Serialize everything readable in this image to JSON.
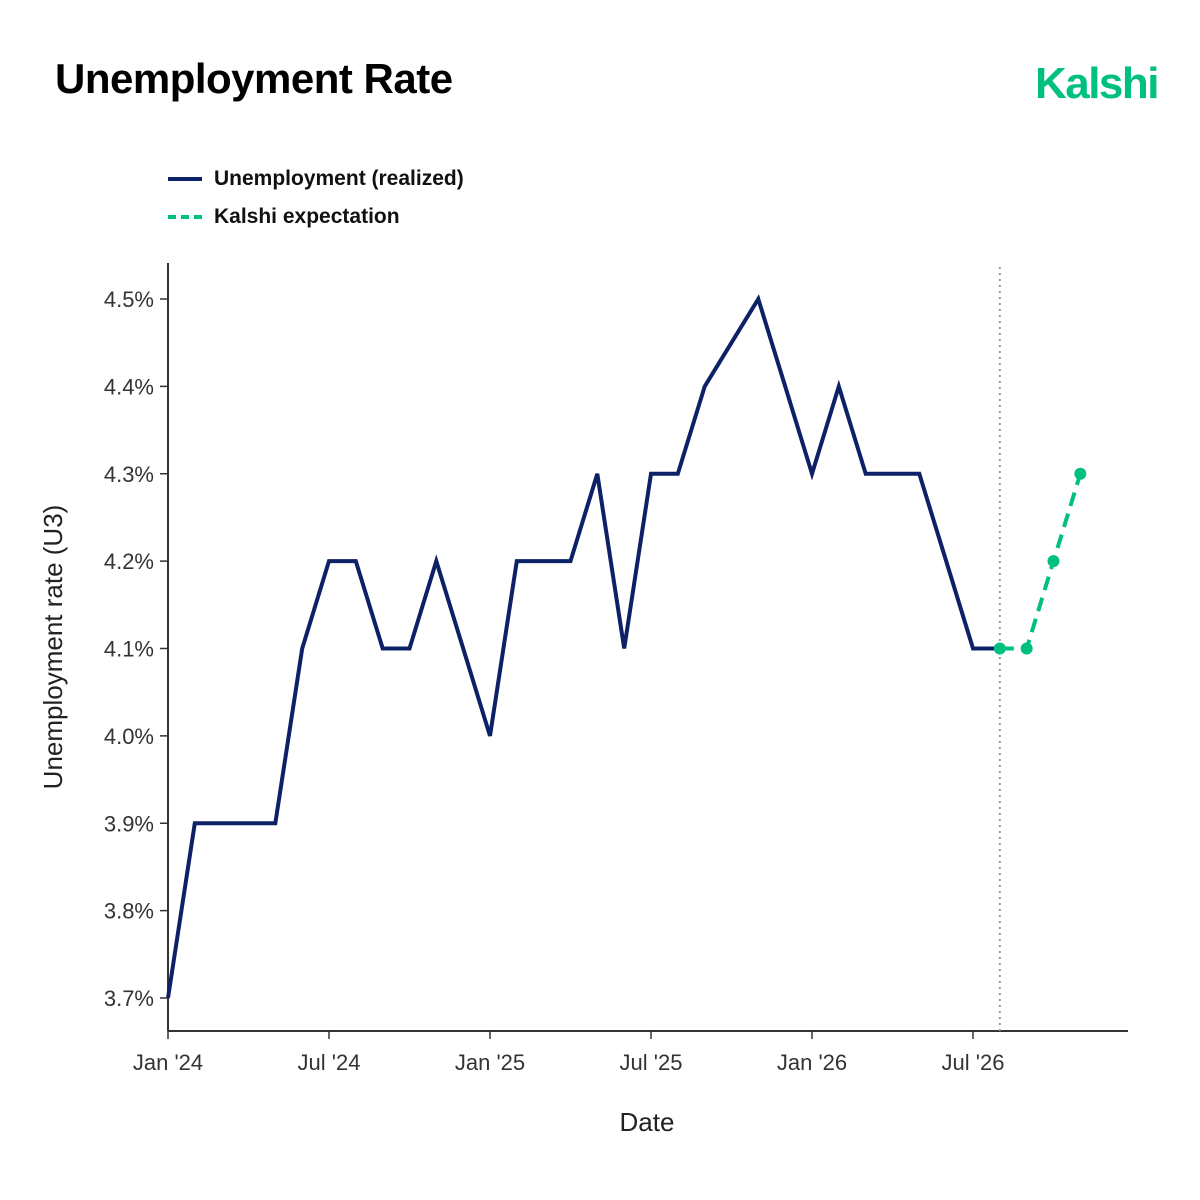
{
  "header": {
    "title": "Unemployment Rate",
    "brand": "Kalshi"
  },
  "colors": {
    "realized": "#0d2166",
    "expectation": "#00c07f",
    "axis": "#333333",
    "reference_line": "#999999"
  },
  "chart_data": {
    "type": "line",
    "xlabel": "Date",
    "ylabel": "Unemployment rate (U3)",
    "ylim": [
      3.7,
      4.5
    ],
    "xlim": [
      "2024-01",
      "2026-11"
    ],
    "grid": false,
    "legend_position": "top-left",
    "x_ticks": [
      {
        "date": "2024-01",
        "label": "Jan '24"
      },
      {
        "date": "2024-07",
        "label": "Jul '24"
      },
      {
        "date": "2025-01",
        "label": "Jan '25"
      },
      {
        "date": "2025-07",
        "label": "Jul '25"
      },
      {
        "date": "2026-01",
        "label": "Jan '26"
      },
      {
        "date": "2026-07",
        "label": "Jul '26"
      }
    ],
    "y_ticks": [
      {
        "value": 3.7,
        "label": "3.7%"
      },
      {
        "value": 3.8,
        "label": "3.8%"
      },
      {
        "value": 3.9,
        "label": "3.9%"
      },
      {
        "value": 4.0,
        "label": "4.0%"
      },
      {
        "value": 4.1,
        "label": "4.1%"
      },
      {
        "value": 4.2,
        "label": "4.2%"
      },
      {
        "value": 4.3,
        "label": "4.3%"
      },
      {
        "value": 4.4,
        "label": "4.4%"
      },
      {
        "value": 4.5,
        "label": "4.5%"
      }
    ],
    "reference_line_x": "2026-08",
    "series": [
      {
        "name": "Unemployment (realized)",
        "style": "solid",
        "x": [
          "2024-01",
          "2024-02",
          "2024-03",
          "2024-04",
          "2024-05",
          "2024-06",
          "2024-07",
          "2024-08",
          "2024-09",
          "2024-10",
          "2024-11",
          "2024-12",
          "2025-01",
          "2025-02",
          "2025-03",
          "2025-04",
          "2025-05",
          "2025-06",
          "2025-07",
          "2025-08",
          "2025-09",
          "2025-10",
          "2025-11",
          "2025-12",
          "2026-01",
          "2026-02",
          "2026-03",
          "2026-04",
          "2026-05",
          "2026-06",
          "2026-07",
          "2026-08"
        ],
        "y": [
          3.7,
          3.9,
          3.9,
          3.9,
          3.9,
          4.1,
          4.2,
          4.2,
          4.1,
          4.1,
          4.2,
          4.1,
          4.0,
          4.2,
          4.2,
          4.2,
          4.3,
          4.1,
          4.3,
          4.3,
          4.4,
          4.45,
          4.5,
          4.4,
          4.3,
          4.4,
          4.3,
          4.3,
          4.3,
          4.2,
          4.1,
          4.1
        ]
      },
      {
        "name": "Kalshi expectation",
        "style": "dashed",
        "markers": true,
        "x": [
          "2026-08",
          "2026-09",
          "2026-10",
          "2026-11"
        ],
        "y": [
          4.1,
          4.1,
          4.2,
          4.3
        ]
      }
    ]
  }
}
